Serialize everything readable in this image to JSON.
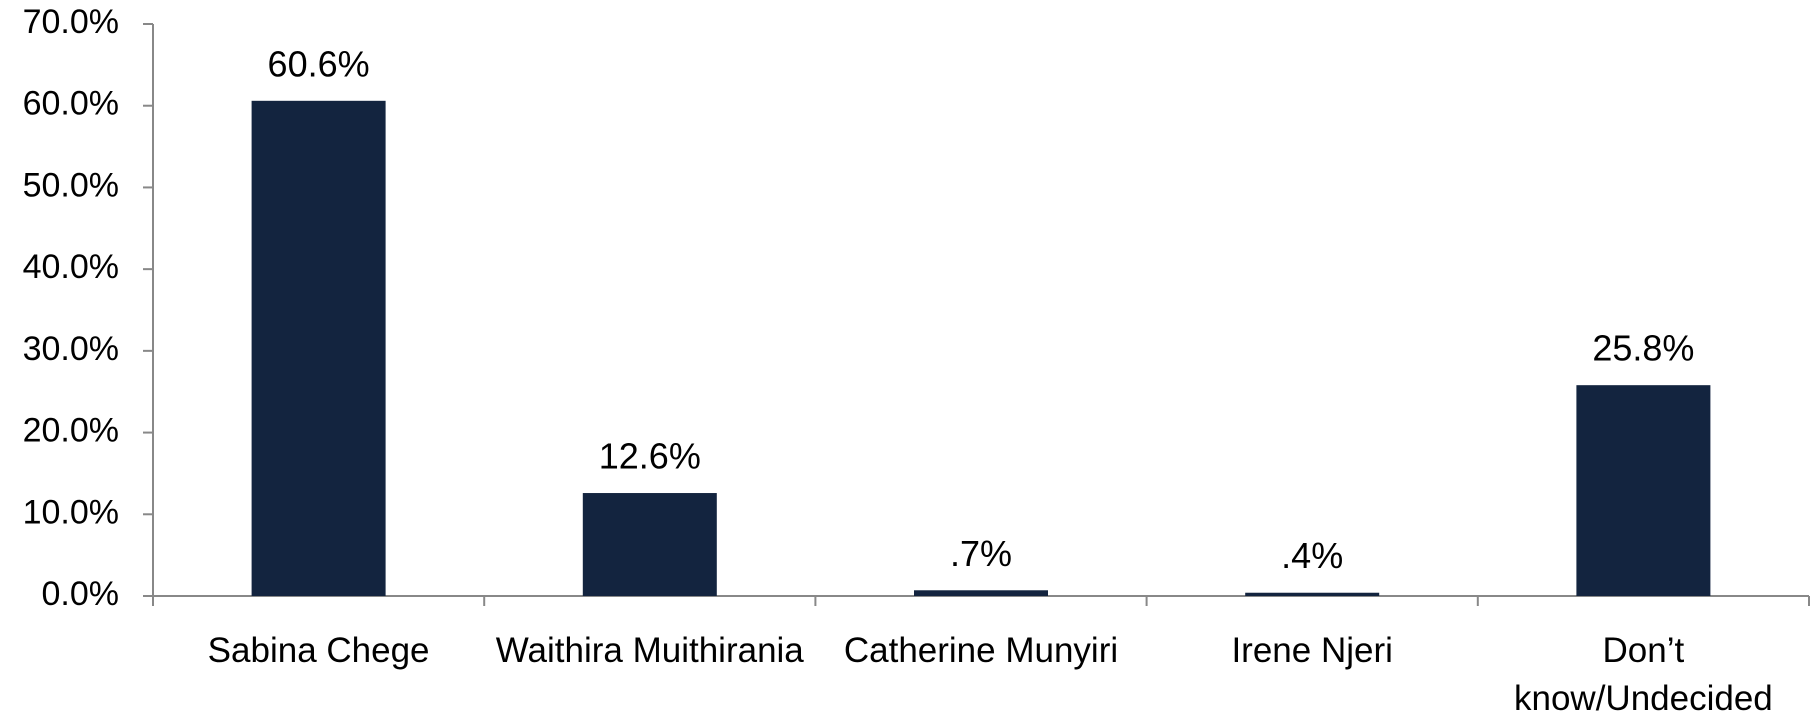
{
  "chart_data": {
    "type": "bar",
    "categories": [
      "Sabina Chege",
      "Waithira Muithirania",
      "Catherine Munyiri",
      "Irene Njeri",
      "Don’t know/Undecided"
    ],
    "values": [
      60.6,
      12.6,
      0.7,
      0.4,
      25.8
    ],
    "value_labels": [
      "60.6%",
      "12.6%",
      ".7%",
      ".4%",
      "25.8%"
    ],
    "color": "#13243f",
    "ylim": [
      0,
      70
    ],
    "yticks": [
      {
        "value": 0,
        "label": "0.0%"
      },
      {
        "value": 10,
        "label": "10.0%"
      },
      {
        "value": 20,
        "label": "20.0%"
      },
      {
        "value": 30,
        "label": "30.0%"
      },
      {
        "value": 40,
        "label": "40.0%"
      },
      {
        "value": 50,
        "label": "50.0%"
      },
      {
        "value": 60,
        "label": "60.0%"
      },
      {
        "value": 70,
        "label": "70.0%"
      }
    ],
    "grid": false
  }
}
